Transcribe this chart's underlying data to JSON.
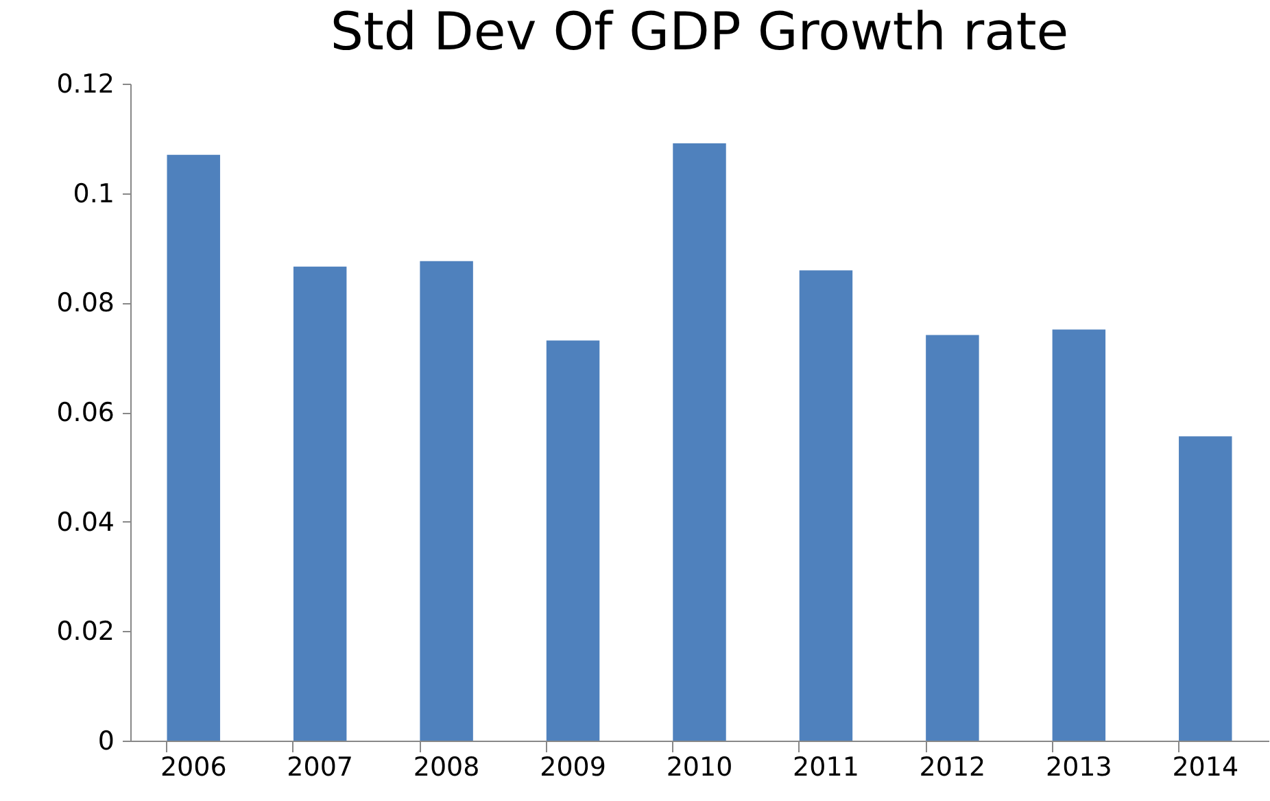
{
  "chart_data": {
    "type": "bar",
    "title": "Std Dev Of GDP Growth rate",
    "categories": [
      "2006",
      "2007",
      "2008",
      "2009",
      "2010",
      "2011",
      "2012",
      "2013",
      "2014"
    ],
    "values": [
      0.107,
      0.0866,
      0.0876,
      0.0731,
      0.1091,
      0.0859,
      0.0741,
      0.0751,
      0.0556
    ],
    "color": "#4f81bd",
    "ylim": [
      0,
      0.12
    ],
    "yticks": [
      0,
      0.02,
      0.04,
      0.06,
      0.08,
      0.1,
      0.12
    ],
    "grid": false
  }
}
